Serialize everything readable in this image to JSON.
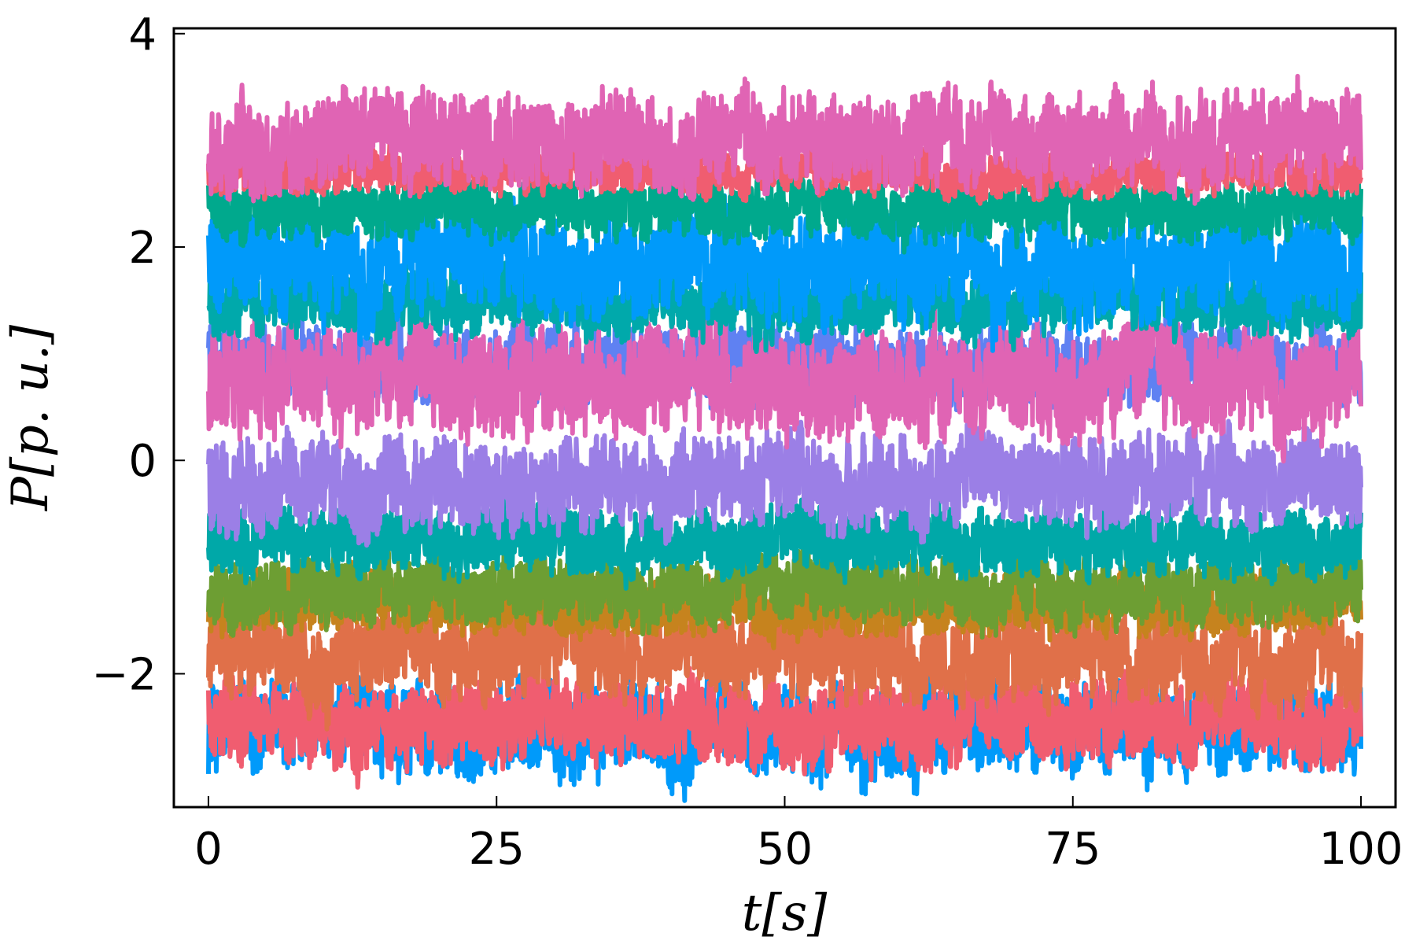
{
  "chart_data": {
    "type": "line",
    "title": "",
    "xlabel": "t[s]",
    "ylabel": "P[p. u.]",
    "xlim": [
      -3,
      103
    ],
    "ylim": [
      -3.25,
      4.05
    ],
    "x_ticks": [
      0,
      25,
      50,
      75,
      100
    ],
    "x_tick_labels": [
      "0",
      "25",
      "50",
      "75",
      "100"
    ],
    "y_ticks": [
      -2,
      0,
      2,
      4
    ],
    "y_tick_labels": [
      "−2",
      "0",
      "2",
      "4"
    ],
    "grid": false,
    "legend": "none",
    "x_range": [
      0,
      100
    ],
    "series": [
      {
        "color": "#009AFA",
        "mean": -2.5,
        "amplitude": 0.55
      },
      {
        "color": "#F05D70",
        "mean": -2.45,
        "amplitude": 0.5
      },
      {
        "color": "#E07049",
        "mean": -1.8,
        "amplitude": 0.55
      },
      {
        "color": "#C6831E",
        "mean": -1.35,
        "amplitude": 0.35
      },
      {
        "color": "#6D9E33",
        "mean": -1.2,
        "amplitude": 0.4
      },
      {
        "color": "#00A8A8",
        "mean": -0.75,
        "amplitude": 0.4
      },
      {
        "color": "#9B7FE6",
        "mean": -0.2,
        "amplitude": 0.55
      },
      {
        "color": "#5F81F2",
        "mean": 0.9,
        "amplitude": 0.45
      },
      {
        "color": "#E064B4",
        "mean": 0.75,
        "amplitude": 0.65
      },
      {
        "color": "#00A9AB",
        "mean": 1.5,
        "amplitude": 0.4
      },
      {
        "color": "#009AFA",
        "mean": 1.85,
        "amplitude": 0.65
      },
      {
        "color": "#00A98D",
        "mean": 2.35,
        "amplitude": 0.35
      },
      {
        "color": "#F05D70",
        "mean": 2.7,
        "amplitude": 0.25
      },
      {
        "color": "#E064B4",
        "mean": 3.0,
        "amplitude": 0.55
      }
    ]
  }
}
